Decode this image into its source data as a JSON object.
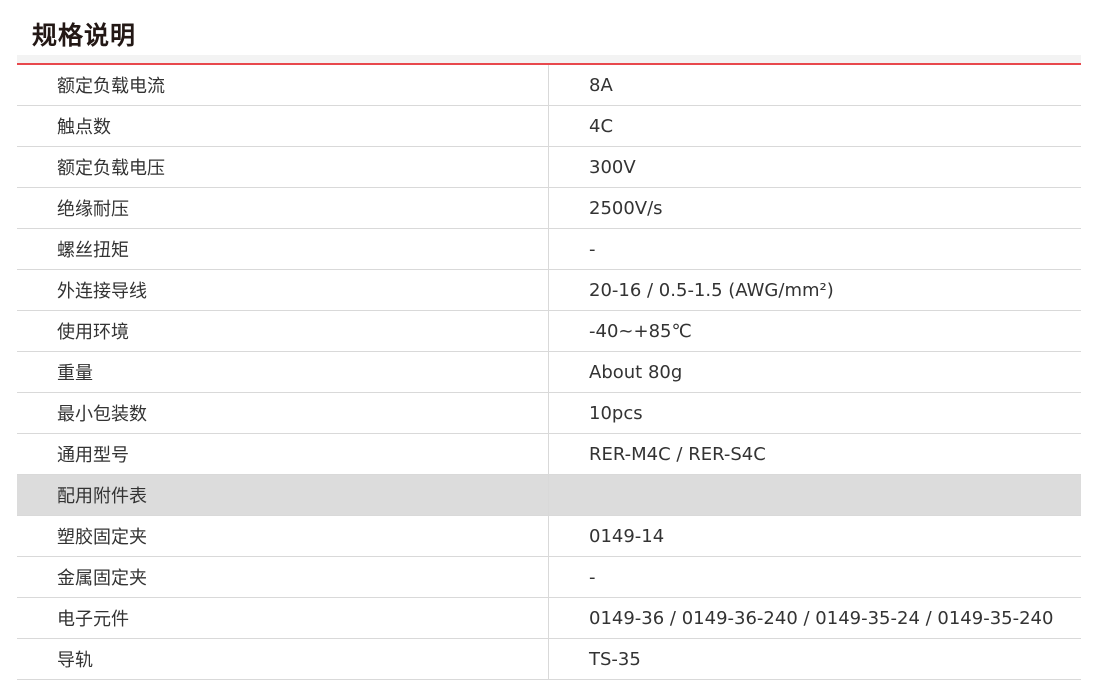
{
  "title": "规格说明",
  "colors": {
    "accent_line": "#e8484d",
    "section_bg": "#dcdcdc"
  },
  "rows": [
    {
      "label": "额定负载电流",
      "value": "8A"
    },
    {
      "label": "触点数",
      "value": "4C"
    },
    {
      "label": "额定负载电压",
      "value": "300V"
    },
    {
      "label": "绝缘耐压",
      "value": "2500V/s"
    },
    {
      "label": "螺丝扭矩",
      "value": "-"
    },
    {
      "label": "外连接导线",
      "value": "20-16 / 0.5-1.5 (AWG/mm²)"
    },
    {
      "label": "使用环境",
      "value": "-40~+85℃"
    },
    {
      "label": "重量",
      "value": "About 80g"
    },
    {
      "label": "最小包装数",
      "value": "10pcs"
    },
    {
      "label": "通用型号",
      "value": "RER-M4C / RER-S4C"
    },
    {
      "label": "配用附件表",
      "value": "",
      "section": true
    },
    {
      "label": "塑胶固定夹",
      "value": "0149-14"
    },
    {
      "label": "金属固定夹",
      "value": "-"
    },
    {
      "label": "电子元件",
      "value": "0149-36 / 0149-36-240 / 0149-35-24 / 0149-35-240"
    },
    {
      "label": "导轨",
      "value": "TS-35"
    }
  ]
}
